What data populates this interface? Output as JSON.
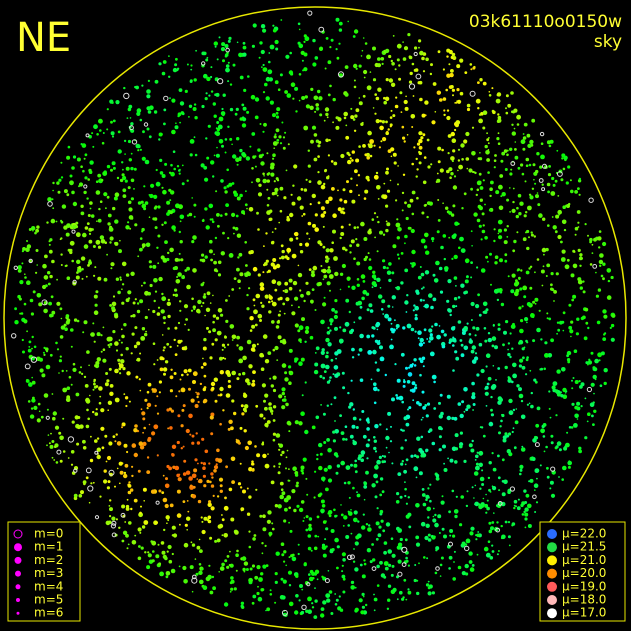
{
  "header": {
    "direction": "NE",
    "frame": "03k61110o0150w",
    "kind": "sky"
  },
  "legend_magnitude": {
    "items": [
      {
        "label": "m=0"
      },
      {
        "label": "m=1"
      },
      {
        "label": "m=2"
      },
      {
        "label": "m=3"
      },
      {
        "label": "m=4"
      },
      {
        "label": "m=5"
      },
      {
        "label": "m=6"
      }
    ]
  },
  "legend_brightness": {
    "items": [
      {
        "label": "μ=22.0",
        "color": "#2a6cff"
      },
      {
        "label": "μ=21.5",
        "color": "#22dd44"
      },
      {
        "label": "μ=21.0",
        "color": "#ffee00"
      },
      {
        "label": "μ=20.0",
        "color": "#ff8c00"
      },
      {
        "label": "μ=19.0",
        "color": "#ff5a5a"
      },
      {
        "label": "μ=18.0",
        "color": "#ffb8b8"
      },
      {
        "label": "μ=17.0",
        "color": "#ffffff"
      }
    ]
  }
}
